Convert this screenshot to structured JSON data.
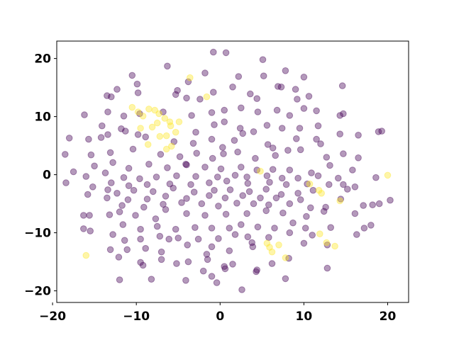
{
  "chart_data": {
    "type": "scatter",
    "title": "",
    "xlabel": "",
    "ylabel": "",
    "xlim": [
      -19.5,
      22.5
    ],
    "ylim": [
      -22,
      23
    ],
    "xticks": [
      -20,
      -10,
      0,
      10,
      20
    ],
    "yticks": [
      -20,
      -10,
      0,
      10,
      20
    ],
    "xtick_labels": [
      "−20",
      "−10",
      "0",
      "10",
      "20"
    ],
    "ytick_labels": [
      "−20",
      "−10",
      "0",
      "10",
      "20"
    ],
    "grid": false,
    "legend": "none",
    "marker_alpha": 0.4,
    "colors": {
      "class_0": "#440154",
      "class_1": "#fde725"
    },
    "series": [
      {
        "color_key": "class_0",
        "points": [
          [
            -0.8,
            21.1
          ],
          [
            0.7,
            21.0
          ],
          [
            5.1,
            19.8
          ],
          [
            -6.3,
            18.7
          ],
          [
            7.8,
            17.9
          ],
          [
            -1.8,
            17.5
          ],
          [
            -10.5,
            17.1
          ],
          [
            2.2,
            16.9
          ],
          [
            5.2,
            17.0
          ],
          [
            10.0,
            16.8
          ],
          [
            -3.8,
            16.0
          ],
          [
            -9.9,
            15.6
          ],
          [
            -12.3,
            14.7
          ],
          [
            6.9,
            15.2
          ],
          [
            7.3,
            15.1
          ],
          [
            9.0,
            14.7
          ],
          [
            14.6,
            15.3
          ],
          [
            1.5,
            15.1
          ],
          [
            -5.1,
            14.5
          ],
          [
            -0.8,
            14.2
          ],
          [
            -13.5,
            13.6
          ],
          [
            -13.0,
            13.4
          ],
          [
            -9.8,
            14.1
          ],
          [
            -5.3,
            13.8
          ],
          [
            -4.0,
            13.2
          ],
          [
            -2.4,
            13.0
          ],
          [
            3.6,
            13.9
          ],
          [
            4.4,
            13.1
          ],
          [
            9.2,
            13.0
          ],
          [
            10.6,
            13.5
          ],
          [
            -16.2,
            10.3
          ],
          [
            -13.4,
            10.8
          ],
          [
            -11.5,
            10.1
          ],
          [
            -9.6,
            10.5
          ],
          [
            -6.8,
            10.8
          ],
          [
            -3.4,
            10.2
          ],
          [
            -1.0,
            10.7
          ],
          [
            0.5,
            11.1
          ],
          [
            2.5,
            11.5
          ],
          [
            4.5,
            10.8
          ],
          [
            6.8,
            11.1
          ],
          [
            8.3,
            10.2
          ],
          [
            10.0,
            11.4
          ],
          [
            11.5,
            11.0
          ],
          [
            14.3,
            10.2
          ],
          [
            14.7,
            10.5
          ],
          [
            -14.1,
            8.4
          ],
          [
            -11.8,
            7.9
          ],
          [
            -9.8,
            6.9
          ],
          [
            -2.9,
            7.3
          ],
          [
            -0.7,
            8.6
          ],
          [
            0.5,
            9.1
          ],
          [
            2.4,
            8.0
          ],
          [
            4.0,
            7.4
          ],
          [
            5.6,
            8.5
          ],
          [
            7.4,
            8.0
          ],
          [
            9.5,
            8.0
          ],
          [
            11.7,
            8.4
          ],
          [
            -18.0,
            6.3
          ],
          [
            -15.7,
            6.1
          ],
          [
            -14.2,
            6.4
          ],
          [
            -13.4,
            6.9
          ],
          [
            -11.3,
            7.5
          ],
          [
            -8.9,
            6.5
          ],
          [
            -5.5,
            5.7
          ],
          [
            -3.2,
            5.4
          ],
          [
            -1.0,
            6.1
          ],
          [
            1.7,
            5.9
          ],
          [
            2.7,
            7.1
          ],
          [
            5.7,
            5.2
          ],
          [
            9.1,
            6.2
          ],
          [
            11.5,
            6.1
          ],
          [
            14.3,
            7.0
          ],
          [
            16.5,
            6.8
          ],
          [
            18.9,
            7.4
          ],
          [
            19.3,
            7.5
          ],
          [
            -18.5,
            3.5
          ],
          [
            -15.4,
            3.4
          ],
          [
            -13.1,
            3.8
          ],
          [
            -10.4,
            4.4
          ],
          [
            -7.1,
            3.5
          ],
          [
            -4.8,
            3.1
          ],
          [
            -2.8,
            3.7
          ],
          [
            -0.9,
            2.8
          ],
          [
            0.4,
            3.6
          ],
          [
            2.1,
            3.9
          ],
          [
            4.2,
            2.8
          ],
          [
            6.6,
            3.3
          ],
          [
            8.1,
            4.2
          ],
          [
            9.6,
            4.3
          ],
          [
            12.0,
            5.3
          ],
          [
            12.7,
            3.0
          ],
          [
            14.7,
            3.6
          ],
          [
            16.5,
            2.9
          ],
          [
            -15.0,
            1.5
          ],
          [
            -12.8,
            2.1
          ],
          [
            -10.9,
            1.1
          ],
          [
            -8.5,
            1.8
          ],
          [
            -6.3,
            1.2
          ],
          [
            -4.1,
            1.8
          ],
          [
            -1.8,
            1.3
          ],
          [
            0.1,
            1.0
          ],
          [
            2.5,
            1.3
          ],
          [
            4.4,
            0.8
          ],
          [
            6.3,
            0.9
          ],
          [
            8.3,
            0.8
          ],
          [
            10.9,
            0.3
          ],
          [
            13.1,
            1.6
          ],
          [
            15.8,
            0.8
          ],
          [
            -17.5,
            0.5
          ],
          [
            -16.0,
            -0.3
          ],
          [
            -13.7,
            0.3
          ],
          [
            -11.5,
            -0.5
          ],
          [
            -9.6,
            -0.7
          ],
          [
            -7.6,
            -0.4
          ],
          [
            -5.2,
            -0.2
          ],
          [
            -2.9,
            -0.3
          ],
          [
            -0.3,
            -0.4
          ],
          [
            1.8,
            -0.1
          ],
          [
            3.2,
            -0.4
          ],
          [
            5.6,
            -0.2
          ],
          [
            7.4,
            -0.6
          ],
          [
            9.3,
            -0.6
          ],
          [
            11.7,
            -0.2
          ],
          [
            14.1,
            -0.6
          ],
          [
            18.6,
            -0.5
          ],
          [
            -18.4,
            -1.4
          ],
          [
            -15.2,
            -2.1
          ],
          [
            -13.0,
            -1.4
          ],
          [
            -10.9,
            -1.9
          ],
          [
            -8.7,
            -1.7
          ],
          [
            -6.0,
            -1.6
          ],
          [
            -3.5,
            -1.7
          ],
          [
            -1.3,
            -1.4
          ],
          [
            0.8,
            -1.1
          ],
          [
            3.3,
            -1.5
          ],
          [
            5.9,
            -1.3
          ],
          [
            7.9,
            -1.7
          ],
          [
            10.4,
            -1.6
          ],
          [
            13.0,
            -1.7
          ],
          [
            14.7,
            -1.7
          ],
          [
            16.1,
            -2.1
          ],
          [
            -15.8,
            -3.4
          ],
          [
            -13.4,
            -2.6
          ],
          [
            -12.3,
            -3.2
          ],
          [
            -10.3,
            -2.7
          ],
          [
            -8.0,
            -2.9
          ],
          [
            -5.6,
            -2.3
          ],
          [
            -3.1,
            -3.0
          ],
          [
            -0.7,
            -2.7
          ],
          [
            1.2,
            -2.6
          ],
          [
            3.5,
            -2.9
          ],
          [
            5.5,
            -2.5
          ],
          [
            7.3,
            -3.4
          ],
          [
            9.3,
            -3.2
          ],
          [
            11.1,
            -2.7
          ],
          [
            15.2,
            -2.5
          ],
          [
            -13.5,
            -4.0
          ],
          [
            -11.0,
            -4.3
          ],
          [
            -8.7,
            -4.2
          ],
          [
            -6.5,
            -3.7
          ],
          [
            -4.0,
            -4.1
          ],
          [
            -1.3,
            -3.6
          ],
          [
            0.6,
            -4.0
          ],
          [
            2.7,
            -3.6
          ],
          [
            4.8,
            -4.0
          ],
          [
            6.7,
            -4.0
          ],
          [
            9.6,
            -4.3
          ],
          [
            14.4,
            -4.2
          ],
          [
            -11.7,
            -5.3
          ],
          [
            -9.1,
            -5.6
          ],
          [
            -6.8,
            -5.1
          ],
          [
            -4.6,
            -4.8
          ],
          [
            -2.2,
            -5.0
          ],
          [
            -0.2,
            -5.4
          ],
          [
            2.0,
            -4.9
          ],
          [
            4.0,
            -5.0
          ],
          [
            5.8,
            -5.2
          ],
          [
            8.3,
            -5.0
          ],
          [
            10.8,
            -5.7
          ],
          [
            12.6,
            -5.6
          ],
          [
            17.1,
            -5.3
          ],
          [
            18.2,
            -5.2
          ],
          [
            19.0,
            -5.0
          ],
          [
            20.3,
            -4.4
          ],
          [
            -16.3,
            -7.0
          ],
          [
            -15.6,
            -7.0
          ],
          [
            -13.2,
            -6.9
          ],
          [
            -12.0,
            -6.4
          ],
          [
            -10.1,
            -7.0
          ],
          [
            -7.7,
            -7.6
          ],
          [
            -6.5,
            -6.0
          ],
          [
            -4.0,
            -6.7
          ],
          [
            -1.8,
            -7.0
          ],
          [
            0.7,
            -6.8
          ],
          [
            3.2,
            -6.7
          ],
          [
            5.5,
            -6.2
          ],
          [
            7.5,
            -6.6
          ],
          [
            10.3,
            -7.2
          ],
          [
            12.4,
            -6.3
          ],
          [
            16.1,
            -6.7
          ],
          [
            -16.3,
            -9.3
          ],
          [
            -15.5,
            -9.7
          ],
          [
            -12.8,
            -10.3
          ],
          [
            -11.6,
            -8.6
          ],
          [
            -9.5,
            -9.4
          ],
          [
            -7.5,
            -8.9
          ],
          [
            -5.3,
            -9.4
          ],
          [
            -3.0,
            -9.1
          ],
          [
            -1.0,
            -9.2
          ],
          [
            1.1,
            -9.2
          ],
          [
            2.5,
            -8.6
          ],
          [
            4.5,
            -9.0
          ],
          [
            6.5,
            -9.2
          ],
          [
            8.7,
            -8.3
          ],
          [
            10.2,
            -9.2
          ],
          [
            13.2,
            -9.1
          ],
          [
            17.2,
            -9.2
          ],
          [
            18.0,
            -8.7
          ],
          [
            -11.4,
            -11.3
          ],
          [
            -9.5,
            -11.1
          ],
          [
            -7.2,
            -10.6
          ],
          [
            -5.0,
            -10.9
          ],
          [
            -2.6,
            -11.1
          ],
          [
            -0.2,
            -11.0
          ],
          [
            1.8,
            -10.3
          ],
          [
            3.3,
            -10.7
          ],
          [
            5.8,
            -10.8
          ],
          [
            8.3,
            -10.0
          ],
          [
            11.0,
            -10.4
          ],
          [
            16.3,
            -10.3
          ],
          [
            -13.1,
            -12.9
          ],
          [
            -11.1,
            -12.9
          ],
          [
            -8.9,
            -12.7
          ],
          [
            -7.0,
            -13.3
          ],
          [
            -3.9,
            -12.1
          ],
          [
            -1.0,
            -12.4
          ],
          [
            1.1,
            -13.1
          ],
          [
            3.9,
            -12.4
          ],
          [
            10.0,
            -11.8
          ],
          [
            12.8,
            -12.1
          ],
          [
            -12.1,
            -14.2
          ],
          [
            -9.5,
            -15.1
          ],
          [
            -7.0,
            -14.6
          ],
          [
            -5.2,
            -15.3
          ],
          [
            -3.8,
            -15.0
          ],
          [
            -1.5,
            -14.6
          ],
          [
            0.5,
            -15.8
          ],
          [
            1.5,
            -15.4
          ],
          [
            4.4,
            -16.4
          ],
          [
            6.2,
            -15.3
          ],
          [
            8.2,
            -14.4
          ],
          [
            -9.2,
            -15.6
          ],
          [
            -2.0,
            -16.6
          ],
          [
            0.6,
            -16.2
          ],
          [
            4.3,
            -16.7
          ],
          [
            12.8,
            -16.1
          ],
          [
            -12.0,
            -18.1
          ],
          [
            -8.2,
            -18.0
          ],
          [
            -4.1,
            -18.2
          ],
          [
            -1.0,
            -17.5
          ],
          [
            -0.4,
            -18.6
          ],
          [
            7.8,
            -17.9
          ],
          [
            2.6,
            -19.8
          ],
          [
            -1.6,
            -13.7
          ],
          [
            3.8,
            -11.7
          ],
          [
            -6.1,
            -11.1
          ],
          [
            0.3,
            4.7
          ],
          [
            -4.0,
            1.7
          ],
          [
            6.3,
            4.6
          ]
        ]
      },
      {
        "color_key": "class_1",
        "points": [
          [
            -3.6,
            16.7
          ],
          [
            -1.6,
            13.4
          ],
          [
            -10.5,
            11.6
          ],
          [
            -8.5,
            11.3
          ],
          [
            -9.2,
            10.1
          ],
          [
            -9.8,
            10.8
          ],
          [
            -7.3,
            10.5
          ],
          [
            -7.8,
            11.1
          ],
          [
            -6.0,
            9.1
          ],
          [
            -6.6,
            9.7
          ],
          [
            -5.9,
            8.4
          ],
          [
            -4.9,
            9.1
          ],
          [
            -7.5,
            8.9
          ],
          [
            -8.1,
            8.2
          ],
          [
            -5.3,
            7.3
          ],
          [
            -6.4,
            6.7
          ],
          [
            -7.2,
            6.6
          ],
          [
            -8.6,
            5.2
          ],
          [
            -5.8,
            4.9
          ],
          [
            -6.4,
            4.4
          ],
          [
            -9.5,
            8.0
          ],
          [
            4.8,
            0.6
          ],
          [
            10.7,
            -1.6
          ],
          [
            11.8,
            -2.7
          ],
          [
            12.1,
            -3.2
          ],
          [
            14.3,
            -4.5
          ],
          [
            20.0,
            -0.1
          ],
          [
            -16.0,
            -13.9
          ],
          [
            5.9,
            -12.5
          ],
          [
            6.2,
            -13.3
          ],
          [
            7.0,
            -12.1
          ],
          [
            7.8,
            -14.3
          ],
          [
            13.7,
            -12.3
          ],
          [
            12.7,
            -11.7
          ],
          [
            11.9,
            -10.2
          ],
          [
            5.6,
            -11.8
          ]
        ]
      }
    ]
  }
}
